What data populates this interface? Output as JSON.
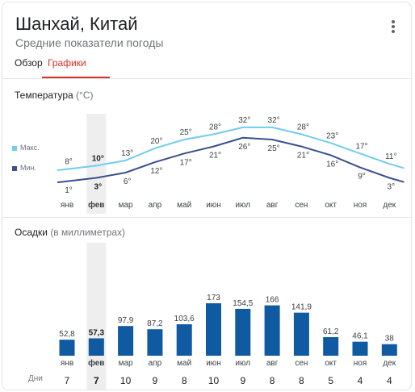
{
  "header": {
    "title": "Шанхай, Китай",
    "subtitle": "Средние показатели погоды"
  },
  "tabs": [
    {
      "label": "Обзор",
      "active": false
    },
    {
      "label": "Графики",
      "active": true
    }
  ],
  "temperature": {
    "title": "Температура",
    "unit": "(°C)",
    "legend_max": "Макс.",
    "legend_min": "Мин."
  },
  "precipitation": {
    "title": "Осадки",
    "unit": "(в миллиметрах)",
    "days_label": "Дни"
  },
  "colors": {
    "max_line": "#6fcdf0",
    "min_line": "#3a4f8e",
    "bar": "#0f5aa0",
    "highlight": "#eeeeee",
    "active_tab": "#d93025"
  },
  "chart_data": [
    {
      "type": "line",
      "title": "Температура (°C)",
      "categories": [
        "янв",
        "фев",
        "мар",
        "апр",
        "май",
        "июн",
        "июл",
        "авг",
        "сен",
        "окт",
        "ноя",
        "дек"
      ],
      "series": [
        {
          "name": "Макс.",
          "values": [
            8,
            10,
            13,
            20,
            25,
            28,
            32,
            32,
            28,
            23,
            17,
            11
          ]
        },
        {
          "name": "Мин.",
          "values": [
            1,
            3,
            6,
            12,
            17,
            21,
            26,
            25,
            21,
            16,
            9,
            3
          ]
        }
      ],
      "highlighted_category": "фев"
    },
    {
      "type": "bar",
      "title": "Осадки (в миллиметрах)",
      "categories": [
        "янв",
        "фев",
        "мар",
        "апр",
        "май",
        "июн",
        "июл",
        "авг",
        "сен",
        "окт",
        "ноя",
        "дек"
      ],
      "values": [
        52.8,
        57.3,
        97.9,
        87.2,
        103.6,
        173,
        154.5,
        166,
        141.9,
        61.2,
        46.1,
        38
      ],
      "value_labels": [
        "52,8",
        "57,3",
        "97,9",
        "87,2",
        "103,6",
        "173",
        "154,5",
        "166",
        "141,9",
        "61,2",
        "46,1",
        "38"
      ],
      "days": [
        7,
        7,
        10,
        9,
        8,
        10,
        9,
        8,
        8,
        5,
        4,
        4
      ],
      "days_label": "Дни",
      "highlighted_category": "фев"
    }
  ]
}
